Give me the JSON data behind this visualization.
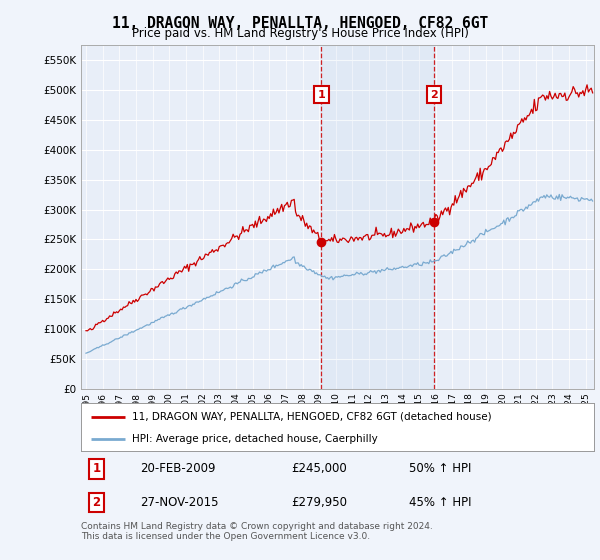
{
  "title": "11, DRAGON WAY, PENALLTA, HENGOED, CF82 6GT",
  "subtitle": "Price paid vs. HM Land Registry's House Price Index (HPI)",
  "bg_color": "#f0f4fb",
  "plot_bg_color": "#e8eef8",
  "grid_color": "#ffffff",
  "red_color": "#cc0000",
  "blue_color": "#7aaad0",
  "dashed_color": "#cc0000",
  "transaction1_date": "20-FEB-2009",
  "transaction1_price": 245000,
  "transaction1_hpi": "50% ↑ HPI",
  "transaction1_year": 2009.13,
  "transaction2_date": "27-NOV-2015",
  "transaction2_price": 279950,
  "transaction2_hpi": "45% ↑ HPI",
  "transaction2_year": 2015.9,
  "legend_line1": "11, DRAGON WAY, PENALLTA, HENGOED, CF82 6GT (detached house)",
  "legend_line2": "HPI: Average price, detached house, Caerphilly",
  "footer": "Contains HM Land Registry data © Crown copyright and database right 2024.\nThis data is licensed under the Open Government Licence v3.0.",
  "yticks": [
    0,
    50000,
    100000,
    150000,
    200000,
    250000,
    300000,
    350000,
    400000,
    450000,
    500000,
    550000
  ],
  "ylim": [
    0,
    575000
  ],
  "xlim_start": 1994.7,
  "xlim_end": 2025.5
}
